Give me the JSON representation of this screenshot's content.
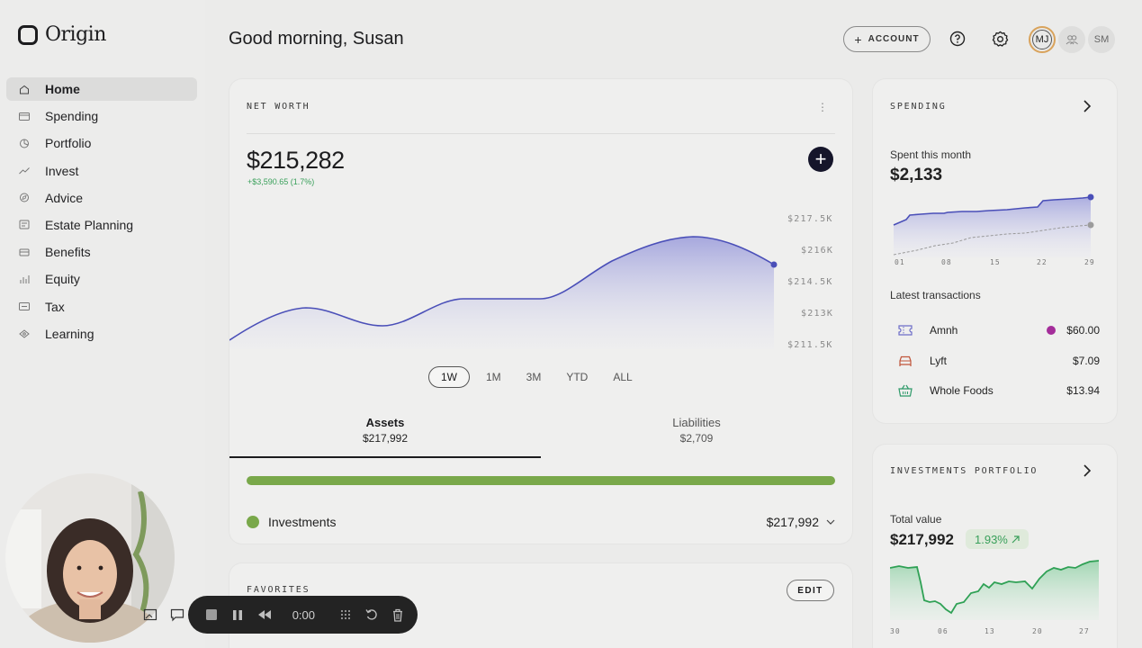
{
  "app": {
    "name": "Origin"
  },
  "sidebar": {
    "items": [
      {
        "label": "Home",
        "icon": "home-icon",
        "active": true
      },
      {
        "label": "Spending",
        "icon": "card-icon"
      },
      {
        "label": "Portfolio",
        "icon": "pie-icon"
      },
      {
        "label": "Invest",
        "icon": "trend-icon"
      },
      {
        "label": "Advice",
        "icon": "compass-icon"
      },
      {
        "label": "Estate Planning",
        "icon": "document-icon"
      },
      {
        "label": "Benefits",
        "icon": "umbrella-icon"
      },
      {
        "label": "Equity",
        "icon": "bars-icon"
      },
      {
        "label": "Tax",
        "icon": "receipt-icon"
      },
      {
        "label": "Learning",
        "icon": "lightbulb-icon"
      }
    ]
  },
  "header": {
    "greeting": "Good morning, Susan",
    "account_button": "ACCOUNT",
    "avatars": [
      "MJ",
      "SM"
    ]
  },
  "net_worth": {
    "title": "NET WORTH",
    "amount": "$215,282",
    "change": "+$3,590.65 (1.7%)",
    "y_ticks": [
      "$217.5K",
      "$216K",
      "$214.5K",
      "$213K",
      "$211.5K"
    ],
    "ranges": [
      "1W",
      "1M",
      "3M",
      "YTD",
      "ALL"
    ],
    "active_range": "1W",
    "tabs": [
      {
        "label": "Assets",
        "value": "$217,992"
      },
      {
        "label": "Liabilities",
        "value": "$2,709"
      }
    ],
    "asset_row": {
      "label": "Investments",
      "value": "$217,992"
    }
  },
  "favorites": {
    "title": "FAVORITES",
    "edit_label": "EDIT"
  },
  "spending": {
    "title": "SPENDING",
    "label": "Spent this month",
    "amount": "$2,133",
    "x_ticks": [
      "01",
      "08",
      "15",
      "22",
      "29"
    ],
    "latest_title": "Latest transactions",
    "transactions": [
      {
        "name": "Amnh",
        "amount": "$60.00",
        "icon": "ticket-icon"
      },
      {
        "name": "Lyft",
        "amount": "$7.09",
        "icon": "car-icon"
      },
      {
        "name": "Whole Foods",
        "amount": "$13.94",
        "icon": "basket-icon"
      }
    ]
  },
  "investments": {
    "title": "INVESTMENTS PORTFOLIO",
    "label": "Total value",
    "amount": "$217,992",
    "change": "1.93%",
    "x_ticks": [
      "30",
      "06",
      "13",
      "20",
      "27"
    ]
  },
  "recorder": {
    "time": "0:00"
  },
  "colors": {
    "accent": "#4a4fb8",
    "positive": "#3aa05b",
    "asset_bar": "#79a84a",
    "background": "#ebebea"
  }
}
